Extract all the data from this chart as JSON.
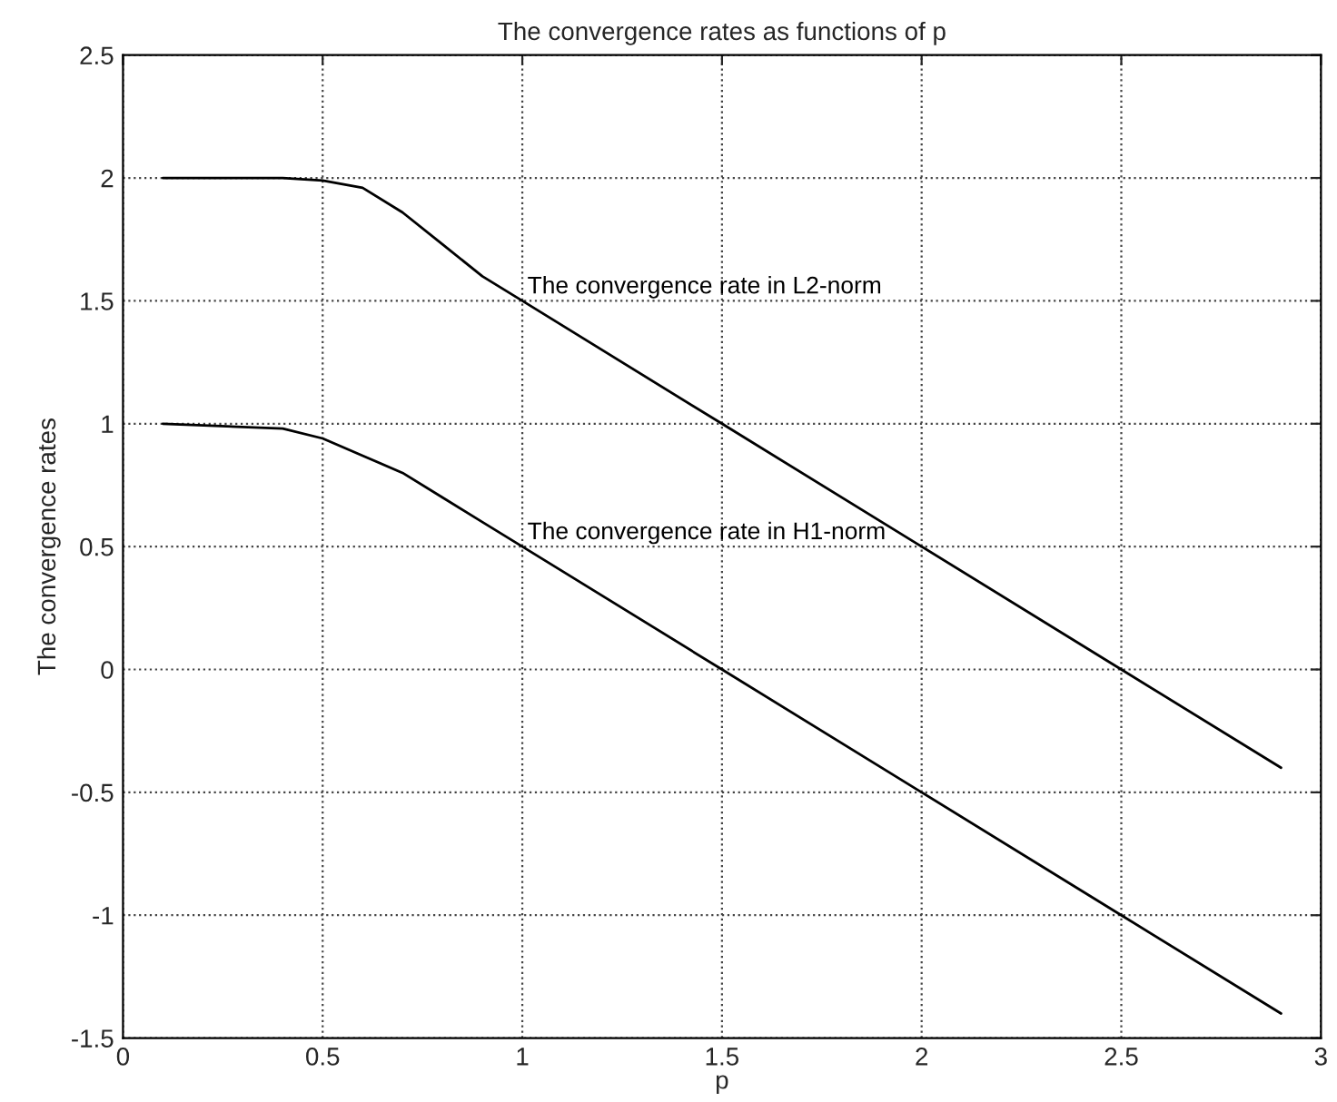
{
  "chart_data": {
    "type": "line",
    "title": "The convergence rates as functions of p",
    "xlabel": "p",
    "ylabel": "The convergence rates",
    "series": [
      {
        "name": "The convergence rate in L2-norm",
        "color": "#000000",
        "x": [
          0.1,
          0.4,
          0.5,
          0.6,
          0.7,
          0.8,
          0.9,
          1.0,
          1.5,
          2.0,
          2.5,
          2.9
        ],
        "values": [
          2,
          2,
          1.99,
          1.96,
          1.86,
          1.73,
          1.6,
          1.5,
          1.0,
          0.5,
          0.0,
          -0.4
        ]
      },
      {
        "name": "The convergence rate in H1-norm",
        "color": "#000000",
        "x": [
          0.1,
          0.4,
          0.5,
          0.6,
          0.7,
          0.8,
          0.9,
          1.0,
          1.5,
          2.0,
          2.5,
          2.9
        ],
        "values": [
          1,
          0.98,
          0.94,
          0.87,
          0.8,
          0.7,
          0.6,
          0.5,
          0.0,
          -0.5,
          -1.0,
          -1.4
        ]
      }
    ],
    "xlim": [
      0,
      3
    ],
    "xticks": [
      0,
      0.5,
      1,
      1.5,
      2,
      2.5,
      3
    ],
    "ylim": [
      -1.5,
      2.5
    ],
    "yticks": [
      -1.5,
      -1,
      -0.5,
      0,
      0.5,
      1,
      1.5,
      2,
      2.5
    ],
    "grid": true,
    "marker": "none",
    "line_style": "solid"
  }
}
